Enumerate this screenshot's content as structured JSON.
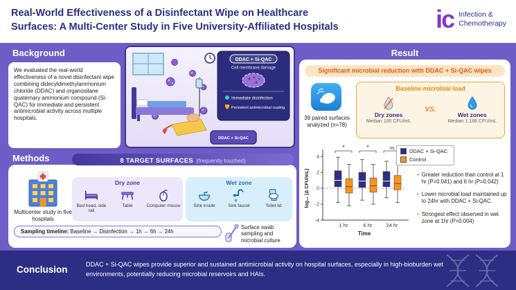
{
  "header": {
    "title_line1": "Real-World Effectiveness of a Disinfectant Wipe on Healthcare",
    "title_line2": "Surfaces: A Multi-Center Study in Five University-Affiliated Hospitals",
    "logo_mark": "ic",
    "logo_name_line1": "Infection &",
    "logo_name_line2": "Chemotherapy"
  },
  "background": {
    "heading": "Background",
    "body": "We evaluated the real-world effectiveness of a novel disinfectant wipe combining didecyldimethylammonium chloride (DDAC) and organosilane quaternary ammonium compound (Si-QAC) for immediate and persistent antimicrobial activity across multiple hospitals."
  },
  "illustration": {
    "card_title": "DDAC + Si-QAC",
    "mechanism_membrane": "Cell membrane damage",
    "mechanism_immediate": "Immediate disinfection",
    "mechanism_persistent": "Persistent antimicrobial coating",
    "wipe_pack_label": "DDAC + Si-QAC"
  },
  "methods": {
    "heading": "Methods",
    "study_text": "Multicenter study in five hospitals",
    "surfaces_title": "8 TARGET SURFACES",
    "surfaces_subtitle": "(frequently touched)",
    "dry_zone_label": "Dry zone",
    "dry_items": [
      "Bed head, side rail",
      "Table",
      "Computer mouse"
    ],
    "wet_zone_label": "Wet zone",
    "wet_items": [
      "Sink inside",
      "Sink faucet",
      "Toilet lid"
    ],
    "timeline_label": "Sampling timeline:",
    "timeline_value": " Baseline → Disinfection → 1h → 6h → 24h",
    "swab_text": "Surface swab sampling and microbial culture"
  },
  "result": {
    "heading": "Result",
    "banner": "Significant microbial reduction with DDAC + Si-QAC wipes",
    "paired_text": "39 paired surfaces analyzed (n=78)",
    "baseline_title": "Baseline microbial load",
    "dry_label": "Dry zones",
    "dry_value": "Median 100 CFU/mL",
    "vs": "VS.",
    "wet_label": "Wet zones",
    "wet_value": "Median 1,188 CFU/mL",
    "bullets": [
      "Greater reduction than control at 1 hr (P=0.041) and 6 hr (P=0.042)",
      "Lower microbial load maintained up to 24hr with DDAC + Si-QAC",
      "Strongest effect observed in wet zone at 1hr (P=0.004)"
    ]
  },
  "chart_data": {
    "type": "boxplot",
    "title": "",
    "xlabel": "Time",
    "ylabel": "log₁₀ (Δ CFU/mL)",
    "ylim": [
      -4,
      4
    ],
    "yticks": [
      4,
      2,
      0,
      -2,
      -4
    ],
    "categories": [
      "1 hr",
      "6 hr",
      "24 hr"
    ],
    "significance": [
      "*",
      "*",
      "ns"
    ],
    "zero_line_dashed": true,
    "legend_position": "top-right",
    "series": [
      {
        "name": "DDAC + Si-QAC",
        "color": "#2d2f84",
        "boxes": [
          [
            -1.8,
            0.2,
            1.0,
            2.2,
            3.9
          ],
          [
            -1.5,
            0.1,
            0.9,
            2.0,
            3.6
          ],
          [
            -1.2,
            0.2,
            0.9,
            2.1,
            3.4
          ]
        ]
      },
      {
        "name": "Control",
        "color": "#f7941d",
        "boxes": [
          [
            -2.2,
            -0.6,
            0.2,
            1.2,
            3.0
          ],
          [
            -2.0,
            -0.5,
            0.3,
            1.3,
            3.0
          ],
          [
            -1.8,
            -0.2,
            0.6,
            1.6,
            3.2
          ]
        ]
      }
    ]
  },
  "conclusion": {
    "heading": "Conclusion",
    "text": "DDAC + Si-QAC wipes provide superior and sustained antimicrobial activity on hospital surfaces, especially in high-bioburden wet environments, potentially reducing microbial reservoirs and HAIs."
  },
  "colors": {
    "purple_bg": "#6e5dc6",
    "deep_indigo": "#2b2e83",
    "accent_orange": "#f7941d",
    "banner_text": "#e2580a"
  }
}
